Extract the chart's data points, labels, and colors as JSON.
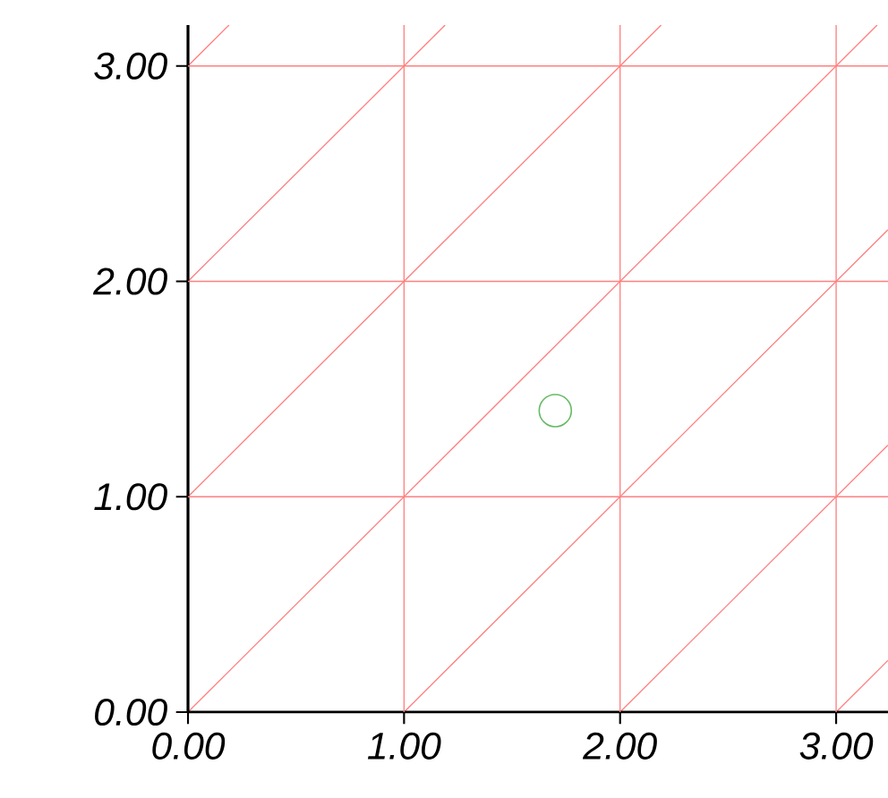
{
  "chart_data": {
    "type": "scatter",
    "x": [
      1.7
    ],
    "values": [
      1.4
    ],
    "color": "#66bb66",
    "marker": "circle",
    "series": [
      {
        "type": "line",
        "marker": "none",
        "color": "#ff8080",
        "x": [
          3,
          3.24
        ],
        "values": [
          0,
          0.24
        ]
      },
      {
        "type": "line",
        "marker": "none",
        "color": "#ff8080",
        "x": [
          2,
          3.24
        ],
        "values": [
          0,
          1.24
        ]
      },
      {
        "type": "line",
        "marker": "none",
        "color": "#ff8080",
        "x": [
          1,
          3.24
        ],
        "values": [
          0,
          2.24
        ]
      },
      {
        "type": "line",
        "marker": "none",
        "color": "#ff8080",
        "x": [
          0,
          3.19
        ],
        "values": [
          0,
          3.19
        ]
      },
      {
        "type": "line",
        "marker": "none",
        "color": "#ff8080",
        "x": [
          0,
          2.19
        ],
        "values": [
          1,
          3.19
        ]
      },
      {
        "type": "line",
        "marker": "none",
        "color": "#ff8080",
        "x": [
          0,
          1.19
        ],
        "values": [
          2,
          3.19
        ]
      },
      {
        "type": "line",
        "marker": "none",
        "color": "#ff8080",
        "x": [
          0,
          0.19
        ],
        "values": [
          3,
          3.19
        ]
      }
    ],
    "xlim": [
      0,
      3.24
    ],
    "ylim": [
      0,
      3.19
    ],
    "xticks": [
      {
        "value": 0,
        "label": "0.00"
      },
      {
        "value": 1,
        "label": "1.00"
      },
      {
        "value": 2,
        "label": "2.00"
      },
      {
        "value": 3,
        "label": "3.00"
      }
    ],
    "yticks": [
      {
        "value": 0,
        "label": "0.00"
      },
      {
        "value": 1,
        "label": "1.00"
      },
      {
        "value": 2,
        "label": "2.00"
      },
      {
        "value": 3,
        "label": "3.00"
      }
    ],
    "grid": true
  }
}
